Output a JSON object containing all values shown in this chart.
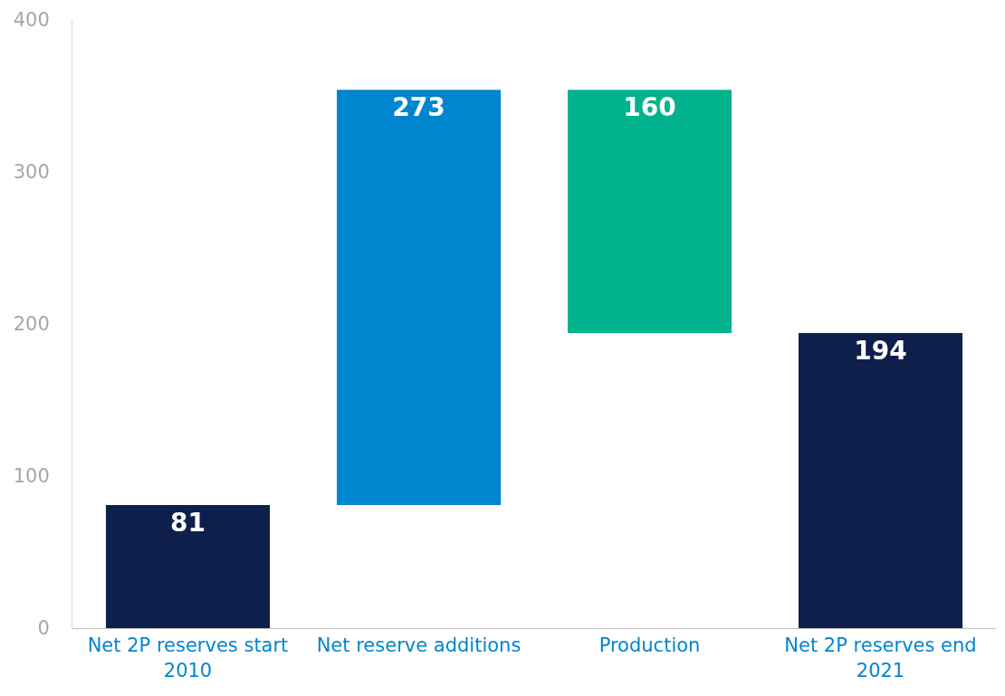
{
  "chart_data": {
    "type": "bar",
    "categories": [
      "Net 2P reserves start 2010",
      "Net reserve additions",
      "Production",
      "Net 2P reserves end 2021"
    ],
    "values": [
      81,
      273,
      160,
      194
    ],
    "base": [
      0,
      81,
      194,
      0
    ],
    "colors": [
      "#0f1f4b",
      "#0085cf",
      "#00b38c",
      "#0f1f4b"
    ],
    "data_labels": true,
    "ylim": [
      0,
      400
    ],
    "yticks": [
      0,
      100,
      200,
      300,
      400
    ],
    "grid": false
  }
}
